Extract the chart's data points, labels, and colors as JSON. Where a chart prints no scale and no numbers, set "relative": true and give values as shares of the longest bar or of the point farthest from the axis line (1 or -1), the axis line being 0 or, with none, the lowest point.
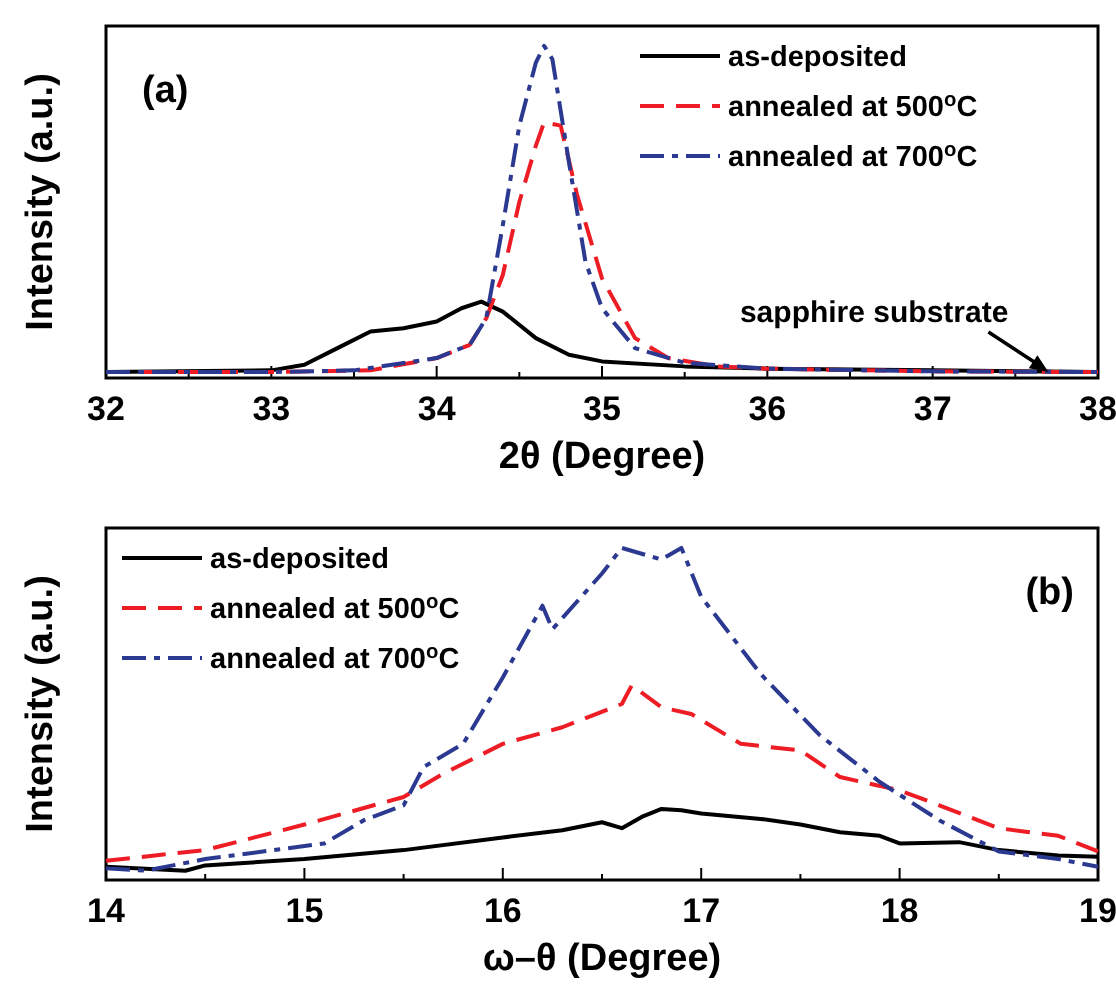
{
  "chart_data": [
    {
      "type": "line",
      "relative": true,
      "xlabel": "2θ (Degree)",
      "ylabel": "Intensity (a.u.)",
      "xlim": [
        32,
        38
      ],
      "xticks": [
        32,
        33,
        34,
        35,
        36,
        37,
        38
      ],
      "legend": "top right",
      "annotations": [
        "(a)",
        {
          "text": "sapphire substrate",
          "x": 37.7,
          "y": 0.018
        }
      ],
      "series": [
        {
          "name": "as-deposited",
          "color": "#000000",
          "line_style": "solid",
          "x": [
            32,
            33,
            33.2,
            33.4,
            33.6,
            33.8,
            34.0,
            34.15,
            34.27,
            34.4,
            34.6,
            34.8,
            35,
            35.5,
            36,
            37,
            38
          ],
          "values": [
            0.018,
            0.023,
            0.04,
            0.09,
            0.14,
            0.15,
            0.17,
            0.21,
            0.23,
            0.2,
            0.12,
            0.07,
            0.05,
            0.035,
            0.028,
            0.023,
            0.018
          ]
        },
        {
          "name": "annealed at 500$^{o}$C",
          "color": "#ee1c24",
          "line_style": "dashed",
          "x": [
            32,
            33,
            33.6,
            34.0,
            34.2,
            34.3,
            34.4,
            34.5,
            34.6,
            34.65,
            34.75,
            34.85,
            35.0,
            35.2,
            35.4,
            35.7,
            36,
            37,
            38
          ],
          "values": [
            0.018,
            0.018,
            0.023,
            0.06,
            0.1,
            0.18,
            0.31,
            0.53,
            0.7,
            0.77,
            0.76,
            0.55,
            0.3,
            0.12,
            0.06,
            0.035,
            0.028,
            0.02,
            0.018
          ]
        },
        {
          "name": "annealed at 700$^{o}$C",
          "color": "#2b3990",
          "line_style": "dashdot",
          "x": [
            32,
            33,
            33.5,
            34.0,
            34.2,
            34.3,
            34.4,
            34.5,
            34.6,
            34.65,
            34.7,
            34.8,
            34.9,
            35.0,
            35.2,
            35.5,
            36,
            37,
            38
          ],
          "values": [
            0.018,
            0.018,
            0.023,
            0.06,
            0.1,
            0.18,
            0.46,
            0.76,
            0.95,
            1.0,
            0.96,
            0.65,
            0.35,
            0.21,
            0.09,
            0.046,
            0.028,
            0.02,
            0.018
          ]
        }
      ]
    },
    {
      "type": "line",
      "relative": true,
      "xlabel": "ω–θ (Degree)",
      "ylabel": "Intensity (a.u.)",
      "xlim": [
        14,
        19
      ],
      "xticks": [
        14,
        15,
        16,
        17,
        18,
        19
      ],
      "legend": "top left",
      "annotations": [
        "(b)"
      ],
      "series": [
        {
          "name": "as-deposited",
          "color": "#000000",
          "line_style": "solid",
          "x": [
            14,
            14.4,
            14.5,
            15,
            15.5,
            16,
            16.3,
            16.5,
            16.6,
            16.7,
            16.8,
            16.9,
            17,
            17.3,
            17.5,
            17.7,
            17.9,
            18,
            18.3,
            18.5,
            18.8,
            19
          ],
          "values": [
            0.04,
            0.028,
            0.044,
            0.063,
            0.09,
            0.128,
            0.15,
            0.174,
            0.156,
            0.19,
            0.214,
            0.21,
            0.2,
            0.184,
            0.167,
            0.144,
            0.133,
            0.11,
            0.114,
            0.09,
            0.074,
            0.07
          ]
        },
        {
          "name": "annealed at 500$^{o}$C",
          "color": "#ee1c24",
          "line_style": "dashed",
          "x": [
            14,
            14.5,
            15,
            15.5,
            15.7,
            16,
            16.3,
            16.6,
            16.65,
            16.8,
            16.95,
            17.2,
            17.5,
            17.7,
            18,
            18.2,
            18.5,
            18.8,
            19
          ],
          "values": [
            0.058,
            0.09,
            0.167,
            0.25,
            0.32,
            0.41,
            0.46,
            0.53,
            0.586,
            0.52,
            0.5,
            0.41,
            0.39,
            0.31,
            0.27,
            0.225,
            0.156,
            0.133,
            0.086
          ]
        },
        {
          "name": "annealed at 700$^{o}$C",
          "color": "#2b3990",
          "line_style": "dashdot",
          "x": [
            14,
            14.2,
            14.5,
            15.1,
            15.3,
            15.5,
            15.6,
            15.8,
            16.0,
            16.2,
            16.25,
            16.5,
            16.6,
            16.8,
            16.9,
            17,
            17.3,
            17.6,
            17.9,
            18.2,
            18.5,
            18.8,
            19
          ],
          "values": [
            0.035,
            0.028,
            0.063,
            0.11,
            0.18,
            0.225,
            0.34,
            0.41,
            0.61,
            0.826,
            0.755,
            0.923,
            1.0,
            0.965,
            1.0,
            0.853,
            0.62,
            0.435,
            0.295,
            0.18,
            0.086,
            0.063,
            0.04
          ]
        }
      ]
    }
  ]
}
